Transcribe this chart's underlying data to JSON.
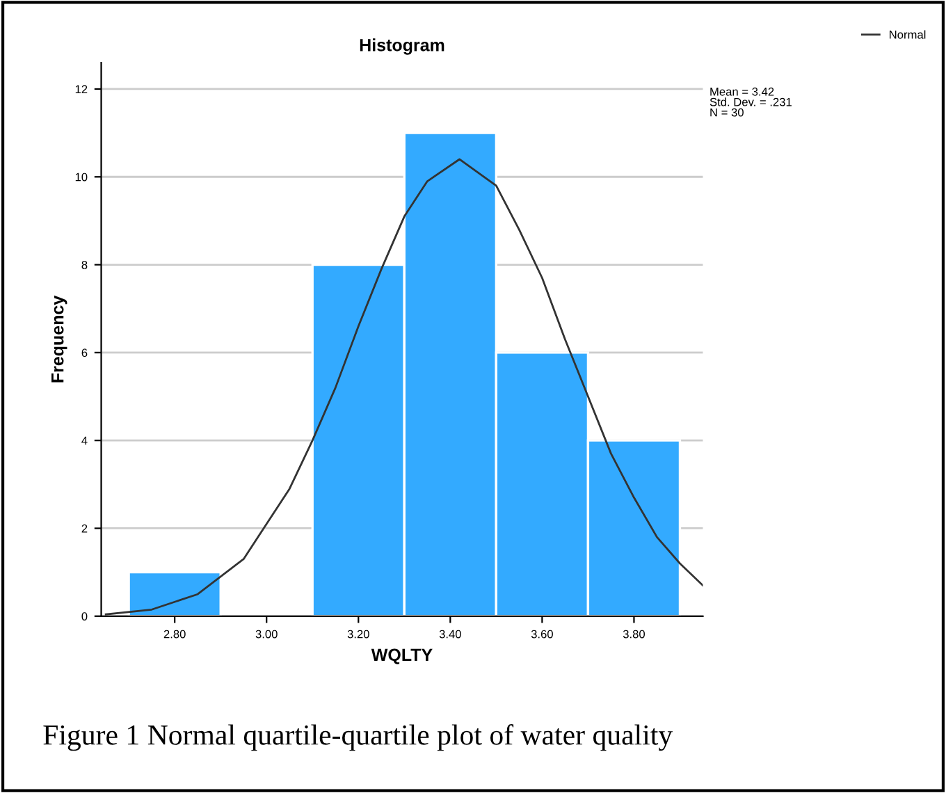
{
  "chart_data": {
    "type": "histogram",
    "title": "Histogram",
    "xlabel": "WQLTY",
    "ylabel": "Frequency",
    "bins": [
      2.7,
      2.9,
      3.1,
      3.3,
      3.5,
      3.7,
      3.9
    ],
    "series": [
      {
        "color": "#33aaff",
        "values": [
          1,
          0,
          8,
          11,
          6,
          4
        ]
      },
      {
        "type": "line",
        "name": "Normal",
        "color": "#333333",
        "x": [
          2.65,
          2.75,
          2.85,
          2.95,
          3.05,
          3.1,
          3.15,
          3.2,
          3.25,
          3.3,
          3.35,
          3.42,
          3.5,
          3.55,
          3.6,
          3.65,
          3.7,
          3.75,
          3.8,
          3.85,
          3.9,
          3.95
        ],
        "values": [
          0.04,
          0.15,
          0.5,
          1.3,
          2.9,
          4.0,
          5.2,
          6.6,
          7.9,
          9.1,
          9.9,
          10.4,
          9.8,
          8.8,
          7.7,
          6.3,
          5.0,
          3.7,
          2.7,
          1.8,
          1.2,
          0.7
        ]
      }
    ],
    "xlim": [
      2.64,
      3.95
    ],
    "xticks": [
      {
        "value": 2.8,
        "label": "2.80"
      },
      {
        "value": 3.0,
        "label": "3.00"
      },
      {
        "value": 3.2,
        "label": "3.20"
      },
      {
        "value": 3.4,
        "label": "3.40"
      },
      {
        "value": 3.6,
        "label": "3.60"
      },
      {
        "value": 3.8,
        "label": "3.80"
      }
    ],
    "ylim": [
      0,
      12.6
    ],
    "yticks": [
      0,
      2,
      4,
      6,
      8,
      10,
      12
    ],
    "grid": "y",
    "legend": "top right",
    "annotations": [
      "Mean = 3.42\nStd. Dev. = .231\nN = 30",
      "Figure 1 Normal quartile-quartile plot of water quality"
    ]
  }
}
